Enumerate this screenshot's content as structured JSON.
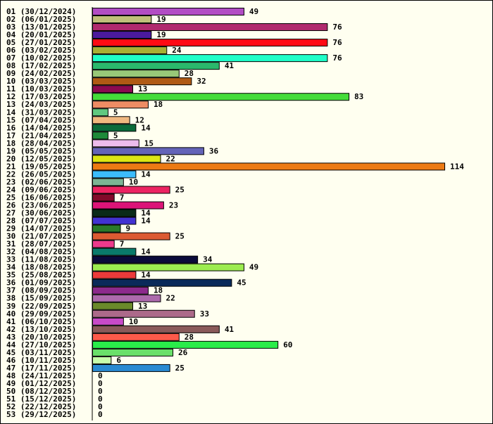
{
  "chart_data": {
    "type": "bar",
    "orientation": "horizontal",
    "title": "",
    "xlabel": "",
    "ylabel": "",
    "xlim": [
      0,
      114
    ],
    "grid": false,
    "legend": "none",
    "categories": [
      "01 (30/12/2024)",
      "02 (06/01/2025)",
      "03 (13/01/2025)",
      "04 (20/01/2025)",
      "05 (27/01/2025)",
      "06 (03/02/2025)",
      "07 (10/02/2025)",
      "08 (17/02/2025)",
      "09 (24/02/2025)",
      "10 (03/03/2025)",
      "11 (10/03/2025)",
      "12 (17/03/2025)",
      "13 (24/03/2025)",
      "14 (31/03/2025)",
      "15 (07/04/2025)",
      "16 (14/04/2025)",
      "17 (21/04/2025)",
      "18 (28/04/2025)",
      "19 (05/05/2025)",
      "20 (12/05/2025)",
      "21 (19/05/2025)",
      "22 (26/05/2025)",
      "23 (02/06/2025)",
      "24 (09/06/2025)",
      "25 (16/06/2025)",
      "26 (23/06/2025)",
      "27 (30/06/2025)",
      "28 (07/07/2025)",
      "29 (14/07/2025)",
      "30 (21/07/2025)",
      "31 (28/07/2025)",
      "32 (04/08/2025)",
      "33 (11/08/2025)",
      "34 (18/08/2025)",
      "35 (25/08/2025)",
      "36 (01/09/2025)",
      "37 (08/09/2025)",
      "38 (15/09/2025)",
      "39 (22/09/2025)",
      "40 (29/09/2025)",
      "41 (06/10/2025)",
      "42 (13/10/2025)",
      "43 (20/10/2025)",
      "44 (27/10/2025)",
      "45 (03/11/2025)",
      "46 (10/11/2025)",
      "47 (17/11/2025)",
      "48 (24/11/2025)",
      "49 (01/12/2025)",
      "50 (08/12/2025)",
      "51 (15/12/2025)",
      "52 (22/12/2025)",
      "53 (29/12/2025)"
    ],
    "values": [
      49,
      19,
      76,
      19,
      76,
      24,
      76,
      41,
      28,
      32,
      13,
      83,
      18,
      5,
      12,
      14,
      5,
      15,
      36,
      22,
      114,
      14,
      10,
      25,
      7,
      23,
      14,
      14,
      9,
      25,
      7,
      14,
      34,
      49,
      14,
      45,
      18,
      22,
      13,
      33,
      10,
      41,
      28,
      60,
      26,
      6,
      25,
      0,
      0,
      0,
      0,
      0,
      0
    ],
    "colors": [
      "#b24dc4",
      "#c0c07a",
      "#b02a6e",
      "#4b1a9e",
      "#ff0a14",
      "#a8b034",
      "#1effc8",
      "#2ab86c",
      "#98c878",
      "#b05a14",
      "#8c0a50",
      "#44dc3a",
      "#ee8c64",
      "#60c880",
      "#f0b880",
      "#0a6a3a",
      "#1e8a3a",
      "#ecbcec",
      "#6464b8",
      "#dce614",
      "#ec7a14",
      "#3cbcfc",
      "#7cb494",
      "#ec2462",
      "#820a2a",
      "#dc1478",
      "#0a2a1a",
      "#4232d2",
      "#2a7a2a",
      "#dc5a32",
      "#ec3a8c",
      "#0a7a6a",
      "#0a0a3a",
      "#9cec50",
      "#ec3a3a",
      "#0a2a5a",
      "#8c2a8c",
      "#ac6aac",
      "#6a8a2a",
      "#ac6a8a",
      "#c84ac8",
      "#8a5a5a",
      "#fc5a4a",
      "#2aec4a",
      "#6ae06a",
      "#c8fcac",
      "#2a8ad2",
      "#cccccc",
      "#cccccc",
      "#cccccc",
      "#cccccc",
      "#cccccc",
      "#cccccc"
    ]
  }
}
